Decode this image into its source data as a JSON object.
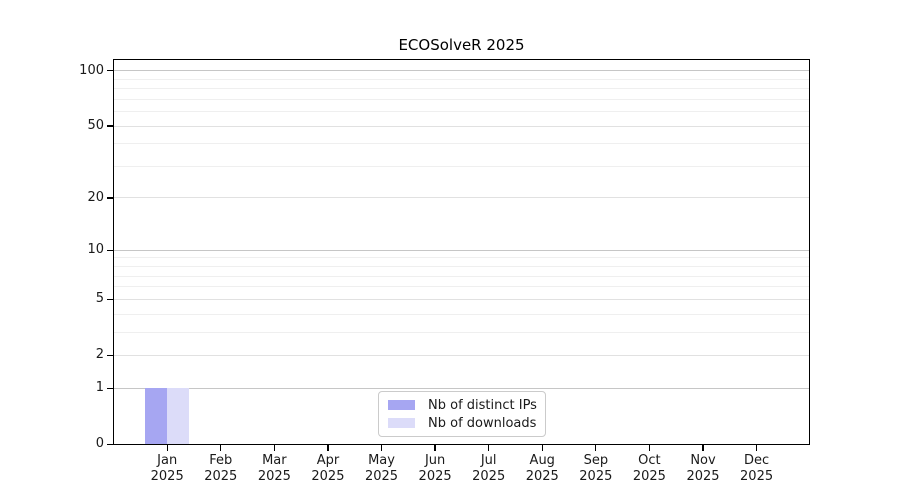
{
  "chart_data": {
    "type": "bar",
    "title": "ECOSolveR 2025",
    "months": [
      "Jan",
      "Feb",
      "Mar",
      "Apr",
      "May",
      "Jun",
      "Jul",
      "Aug",
      "Sep",
      "Oct",
      "Nov",
      "Dec"
    ],
    "year": "2025",
    "y_scale": "log10(1+x)",
    "ylim": [
      0,
      100
    ],
    "y_tick_values": [
      0,
      1,
      2,
      5,
      10,
      20,
      50,
      100
    ],
    "grid": {
      "major_values": [
        1,
        10,
        100
      ],
      "mid_values": [
        2,
        5,
        20,
        50
      ],
      "minor_values": [
        3,
        4,
        6,
        7,
        8,
        9,
        30,
        40,
        60,
        70,
        80,
        90
      ],
      "major_color": "#c6c6c6",
      "mid_color": "#e1e1e1",
      "minor_color": "#efefef"
    },
    "series": [
      {
        "name": "Nb of distinct IPs",
        "color": "#a6a6f2",
        "values": [
          1,
          0,
          0,
          0,
          0,
          0,
          0,
          0,
          0,
          0,
          0,
          0
        ]
      },
      {
        "name": "Nb of downloads",
        "color": "#dcdcf9",
        "values": [
          1,
          0,
          0,
          0,
          0,
          0,
          0,
          0,
          0,
          0,
          0,
          0
        ]
      }
    ],
    "legend": {
      "position": "bottom-center-inside"
    },
    "colors": {
      "spine": "#000000",
      "text": "#1a1a1a",
      "background": "#ffffff"
    }
  }
}
